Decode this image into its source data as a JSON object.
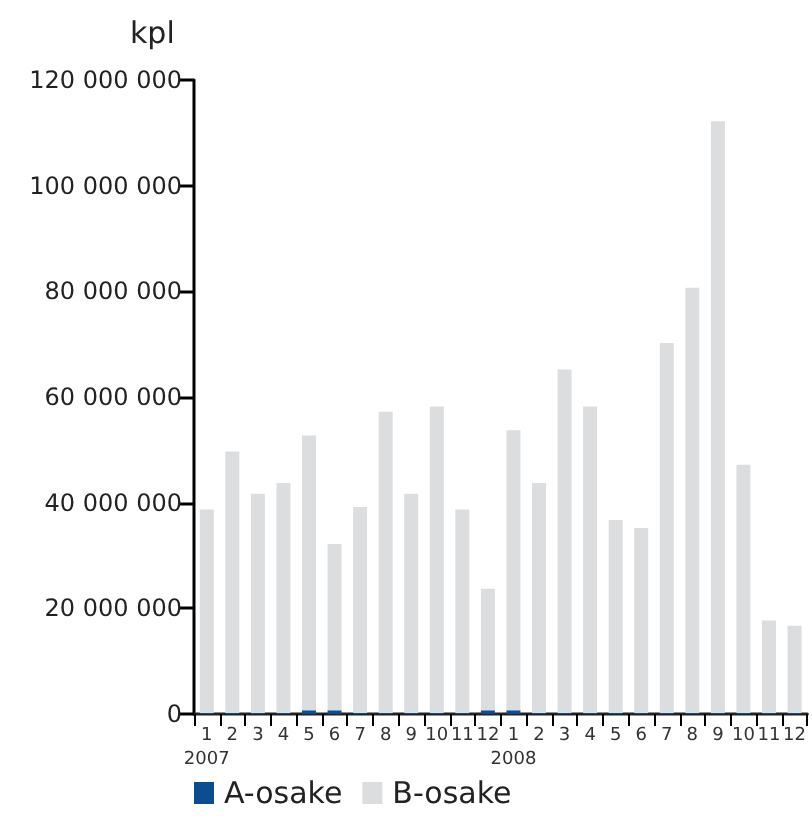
{
  "chart_data": {
    "type": "bar",
    "ylabel": "kpl",
    "stacked": true,
    "grid": false,
    "legend": "bottom left",
    "categories": [
      "1\n2007",
      "2",
      "3",
      "4",
      "5",
      "6",
      "7",
      "8",
      "9",
      "10",
      "11",
      "12",
      "1\n2008",
      "2",
      "3",
      "4",
      "5",
      "6",
      "7",
      "8",
      "9",
      "10",
      "11",
      "12"
    ],
    "series": [
      {
        "name": "A-osake",
        "color": "#0a4d92",
        "values": [
          200000,
          200000,
          200000,
          200000,
          700000,
          700000,
          200000,
          200000,
          200000,
          200000,
          200000,
          700000,
          700000,
          200000,
          200000,
          200000,
          200000,
          200000,
          200000,
          200000,
          200000,
          200000,
          200000,
          200000
        ]
      },
      {
        "name": "B-osake",
        "color": "#dcdddf",
        "values": [
          38500000,
          49500000,
          41500000,
          43500000,
          52000000,
          31500000,
          39000000,
          57000000,
          41500000,
          58000000,
          38500000,
          23000000,
          53000000,
          43500000,
          65000000,
          58000000,
          36500000,
          35000000,
          70000000,
          80500000,
          112000000,
          47000000,
          17500000,
          16500000
        ]
      }
    ],
    "ylim": [
      0,
      120000000
    ],
    "yticks": [
      {
        "value": 0,
        "label": "0"
      },
      {
        "value": 20000000,
        "label": "20 000 000"
      },
      {
        "value": 40000000,
        "label": "40 000 000"
      },
      {
        "value": 60000000,
        "label": "60 000 000"
      },
      {
        "value": 80000000,
        "label": "80 000 000"
      },
      {
        "value": 100000000,
        "label": "100 000 000"
      },
      {
        "value": 120000000,
        "label": "120 000 000"
      }
    ]
  }
}
